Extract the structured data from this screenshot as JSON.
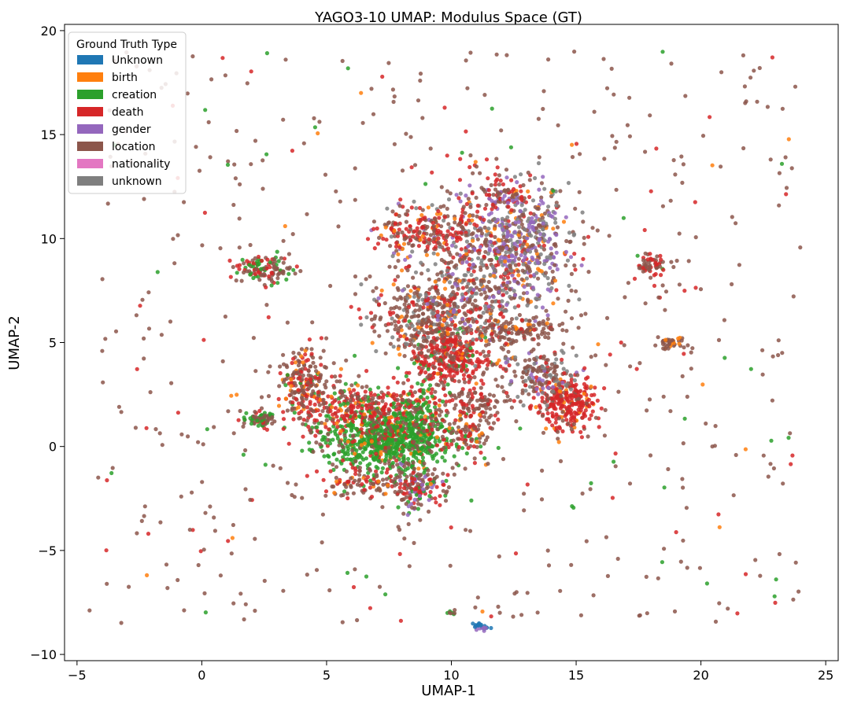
{
  "chart_data": {
    "type": "scatter",
    "title": "YAGO3-10 UMAP: Modulus Space (GT)",
    "xlabel": "UMAP-1",
    "ylabel": "UMAP-2",
    "xlim": [
      -5.5,
      25.5
    ],
    "ylim": [
      -10.3,
      20.3
    ],
    "xticks": [
      -5,
      0,
      5,
      10,
      15,
      20,
      25
    ],
    "yticks": [
      -10,
      -5,
      0,
      5,
      10,
      15,
      20
    ],
    "xtick_labels": [
      "−5",
      "0",
      "5",
      "10",
      "15",
      "20",
      "25"
    ],
    "ytick_labels": [
      "−10",
      "−5",
      "0",
      "5",
      "10",
      "15",
      "20"
    ],
    "grid": false,
    "legend": {
      "title": "Ground Truth Type",
      "placement": "top-left",
      "entries": [
        {
          "label": "Unknown",
          "color": "#1f77b4"
        },
        {
          "label": "birth",
          "color": "#ff7f0e"
        },
        {
          "label": "creation",
          "color": "#2ca02c"
        },
        {
          "label": "death",
          "color": "#d62728"
        },
        {
          "label": "gender",
          "color": "#9467bd"
        },
        {
          "label": "location",
          "color": "#8c564b"
        },
        {
          "label": "nationality",
          "color": "#e377c2"
        },
        {
          "label": "unknown",
          "color": "#7f7f7f"
        }
      ]
    },
    "clusters": [
      {
        "center": [
          7.3,
          0.2
        ],
        "spread": [
          1.4,
          0.7
        ],
        "count": 700,
        "mix": {
          "creation": 0.8,
          "death": 0.07,
          "birth": 0.06,
          "location": 0.07
        }
      },
      {
        "center": [
          6.5,
          1.8
        ],
        "spread": [
          1.6,
          0.7
        ],
        "count": 450,
        "mix": {
          "death": 0.45,
          "location": 0.3,
          "creation": 0.15,
          "birth": 0.1
        }
      },
      {
        "center": [
          8.6,
          1.2
        ],
        "spread": [
          0.5,
          0.9
        ],
        "count": 150,
        "mix": {
          "creation": 0.7,
          "location": 0.2,
          "death": 0.1
        }
      },
      {
        "center": [
          10.0,
          4.3
        ],
        "spread": [
          0.8,
          0.8
        ],
        "count": 350,
        "mix": {
          "death": 0.65,
          "location": 0.2,
          "creation": 0.1,
          "birth": 0.05
        }
      },
      {
        "center": [
          9.3,
          6.3
        ],
        "spread": [
          1.3,
          1.0
        ],
        "count": 400,
        "mix": {
          "location": 0.55,
          "death": 0.2,
          "unknown": 0.15,
          "birth": 0.1
        }
      },
      {
        "center": [
          11.5,
          8.8
        ],
        "spread": [
          1.6,
          1.8
        ],
        "count": 650,
        "mix": {
          "location": 0.35,
          "unknown": 0.25,
          "gender": 0.15,
          "death": 0.15,
          "birth": 0.1
        }
      },
      {
        "center": [
          13.0,
          10.0
        ],
        "spread": [
          0.9,
          1.2
        ],
        "count": 250,
        "mix": {
          "gender": 0.35,
          "unknown": 0.3,
          "location": 0.25,
          "birth": 0.1
        }
      },
      {
        "center": [
          9.0,
          10.4
        ],
        "spread": [
          1.0,
          0.6
        ],
        "count": 180,
        "mix": {
          "death": 0.45,
          "location": 0.4,
          "birth": 0.15
        }
      },
      {
        "center": [
          14.6,
          2.0
        ],
        "spread": [
          0.6,
          0.6
        ],
        "count": 260,
        "mix": {
          "death": 0.75,
          "location": 0.15,
          "birth": 0.1
        }
      },
      {
        "center": [
          13.6,
          3.5
        ],
        "spread": [
          0.8,
          0.6
        ],
        "count": 180,
        "mix": {
          "location": 0.45,
          "unknown": 0.35,
          "gender": 0.1,
          "death": 0.1
        }
      },
      {
        "center": [
          4.1,
          3.2
        ],
        "spread": [
          0.5,
          0.8
        ],
        "count": 160,
        "mix": {
          "location": 0.6,
          "death": 0.3,
          "birth": 0.1
        }
      },
      {
        "center": [
          2.5,
          8.5
        ],
        "spread": [
          0.5,
          0.3
        ],
        "count": 120,
        "mix": {
          "location": 0.45,
          "creation": 0.35,
          "death": 0.2
        }
      },
      {
        "center": [
          2.3,
          1.3
        ],
        "spread": [
          0.3,
          0.2
        ],
        "count": 70,
        "mix": {
          "location": 0.5,
          "creation": 0.4,
          "death": 0.1
        }
      },
      {
        "center": [
          8.7,
          -2.0
        ],
        "spread": [
          0.5,
          0.5
        ],
        "count": 140,
        "mix": {
          "location": 0.4,
          "death": 0.25,
          "creation": 0.2,
          "gender": 0.15
        }
      },
      {
        "center": [
          6.6,
          -1.7
        ],
        "spread": [
          1.0,
          0.4
        ],
        "count": 110,
        "mix": {
          "location": 0.6,
          "death": 0.3,
          "birth": 0.1
        }
      },
      {
        "center": [
          12.8,
          5.6
        ],
        "spread": [
          0.8,
          0.3
        ],
        "count": 110,
        "mix": {
          "location": 0.8,
          "death": 0.1,
          "birth": 0.1
        }
      },
      {
        "center": [
          11.1,
          2.1
        ],
        "spread": [
          0.6,
          0.4
        ],
        "count": 80,
        "mix": {
          "location": 0.7,
          "death": 0.3
        }
      },
      {
        "center": [
          18.0,
          8.7
        ],
        "spread": [
          0.4,
          0.3
        ],
        "count": 60,
        "mix": {
          "location": 0.6,
          "death": 0.3,
          "creation": 0.1
        }
      },
      {
        "center": [
          18.8,
          5.0
        ],
        "spread": [
          0.3,
          0.2
        ],
        "count": 40,
        "mix": {
          "location": 0.7,
          "birth": 0.3
        }
      },
      {
        "center": [
          11.2,
          -8.7
        ],
        "spread": [
          0.2,
          0.1
        ],
        "count": 25,
        "mix": {
          "Unknown": 0.5,
          "gender": 0.5
        }
      },
      {
        "center": [
          10.0,
          -8.0
        ],
        "spread": [
          0.1,
          0.05
        ],
        "count": 8,
        "mix": {
          "location": 0.5,
          "creation": 0.5
        }
      },
      {
        "center": [
          10.5,
          0.8
        ],
        "spread": [
          0.6,
          0.6
        ],
        "count": 100,
        "mix": {
          "location": 0.5,
          "death": 0.3,
          "birth": 0.2
        }
      },
      {
        "center": [
          12.0,
          12.0
        ],
        "spread": [
          0.5,
          0.4
        ],
        "count": 80,
        "mix": {
          "death": 0.4,
          "location": 0.4,
          "gender": 0.2
        }
      }
    ],
    "background": {
      "xlim": [
        -4.5,
        24
      ],
      "ylim": [
        -8.5,
        19
      ],
      "count": 600,
      "mix": {
        "location": 0.75,
        "death": 0.12,
        "creation": 0.08,
        "birth": 0.05
      }
    }
  }
}
